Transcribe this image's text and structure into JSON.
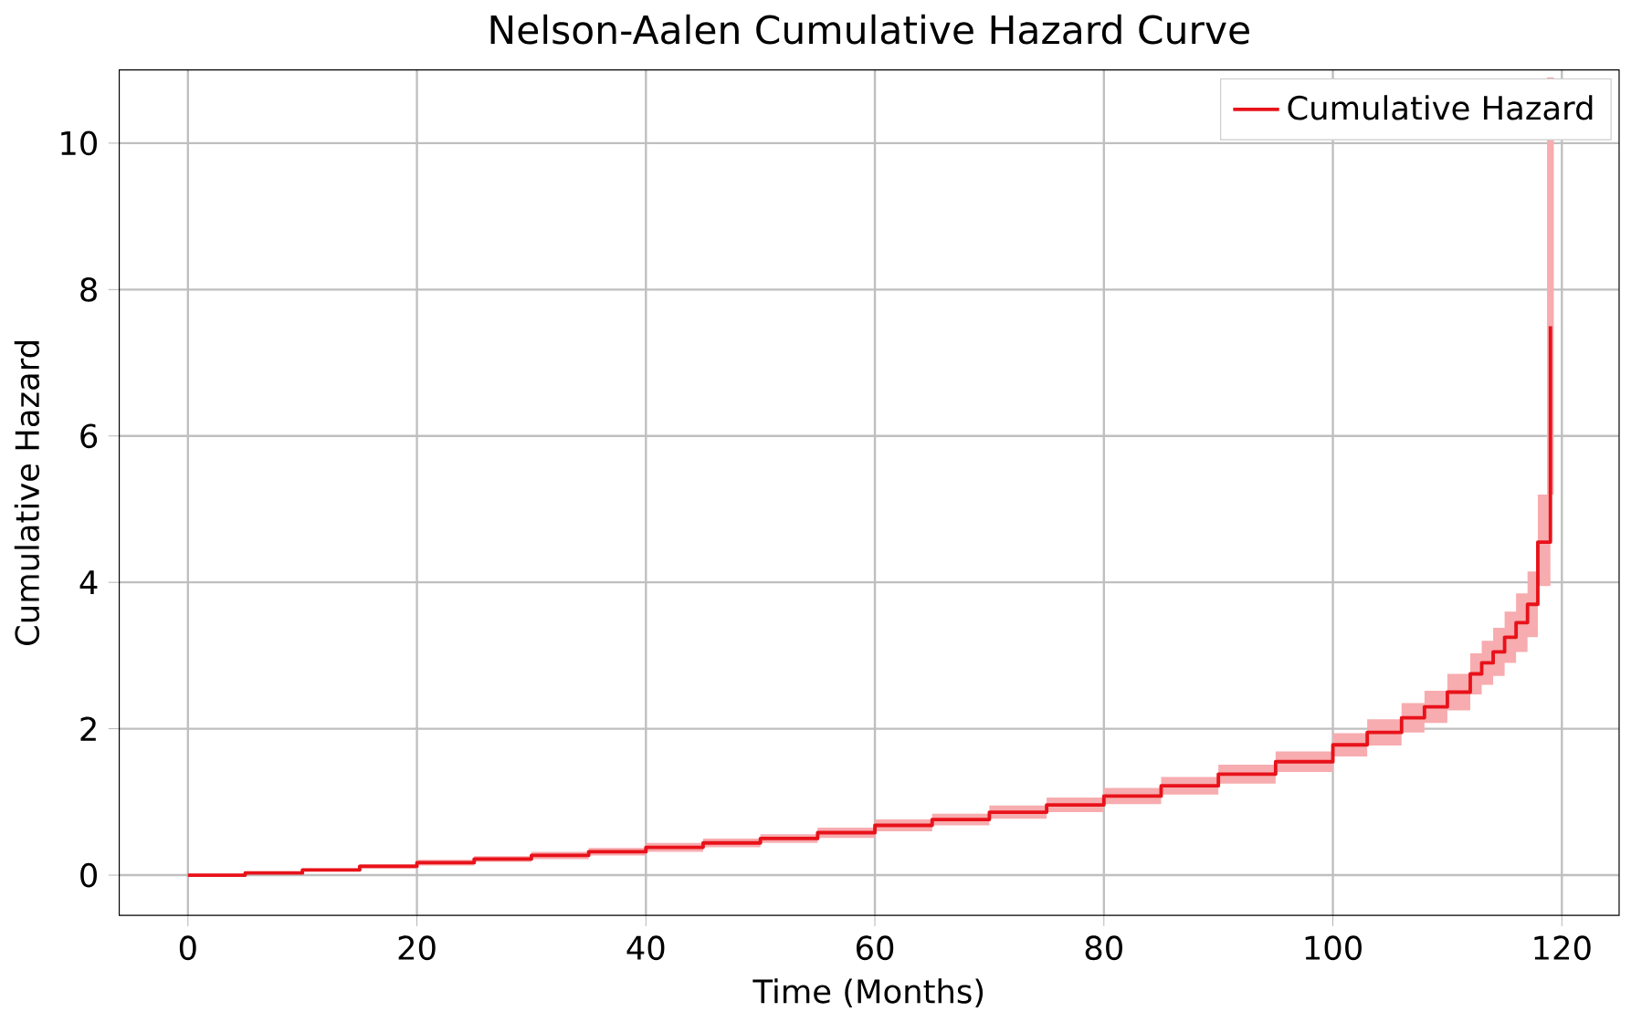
{
  "chart_data": {
    "type": "step",
    "title": "Nelson-Aalen Cumulative Hazard Curve",
    "xlabel": "Time (Months)",
    "ylabel": "Cumulative Hazard",
    "xlim": [
      -6,
      125
    ],
    "ylim": [
      -0.55,
      11
    ],
    "xticks": [
      0,
      20,
      40,
      60,
      80,
      100,
      120
    ],
    "yticks": [
      0,
      2,
      4,
      6,
      8,
      10
    ],
    "grid": true,
    "legend": "top right",
    "series": [
      {
        "name": "Cumulative Hazard",
        "color": "#e8121a",
        "x": [
          0,
          5,
          10,
          15,
          20,
          25,
          30,
          35,
          40,
          45,
          50,
          55,
          60,
          65,
          70,
          75,
          80,
          85,
          90,
          95,
          100,
          103,
          106,
          108,
          110,
          112,
          113,
          114,
          115,
          116,
          117,
          117.9,
          119
        ],
        "values": [
          0,
          0.03,
          0.07,
          0.12,
          0.17,
          0.22,
          0.27,
          0.32,
          0.38,
          0.44,
          0.5,
          0.58,
          0.68,
          0.76,
          0.86,
          0.96,
          1.08,
          1.22,
          1.38,
          1.55,
          1.78,
          1.95,
          2.15,
          2.3,
          2.5,
          2.75,
          2.9,
          3.05,
          3.25,
          3.45,
          3.7,
          4.55,
          7.5
        ],
        "lower": [
          0,
          0.02,
          0.05,
          0.09,
          0.13,
          0.18,
          0.22,
          0.27,
          0.32,
          0.38,
          0.44,
          0.51,
          0.6,
          0.68,
          0.77,
          0.86,
          0.97,
          1.1,
          1.25,
          1.41,
          1.62,
          1.77,
          1.95,
          2.08,
          2.25,
          2.47,
          2.6,
          2.72,
          2.9,
          3.05,
          3.25,
          3.95,
          5.2
        ],
        "upper": [
          0,
          0.04,
          0.09,
          0.15,
          0.21,
          0.26,
          0.32,
          0.37,
          0.44,
          0.5,
          0.56,
          0.65,
          0.76,
          0.84,
          0.95,
          1.06,
          1.19,
          1.34,
          1.51,
          1.69,
          1.94,
          2.13,
          2.35,
          2.52,
          2.75,
          3.03,
          3.2,
          3.38,
          3.6,
          3.85,
          4.15,
          5.2,
          10.9
        ]
      }
    ]
  }
}
